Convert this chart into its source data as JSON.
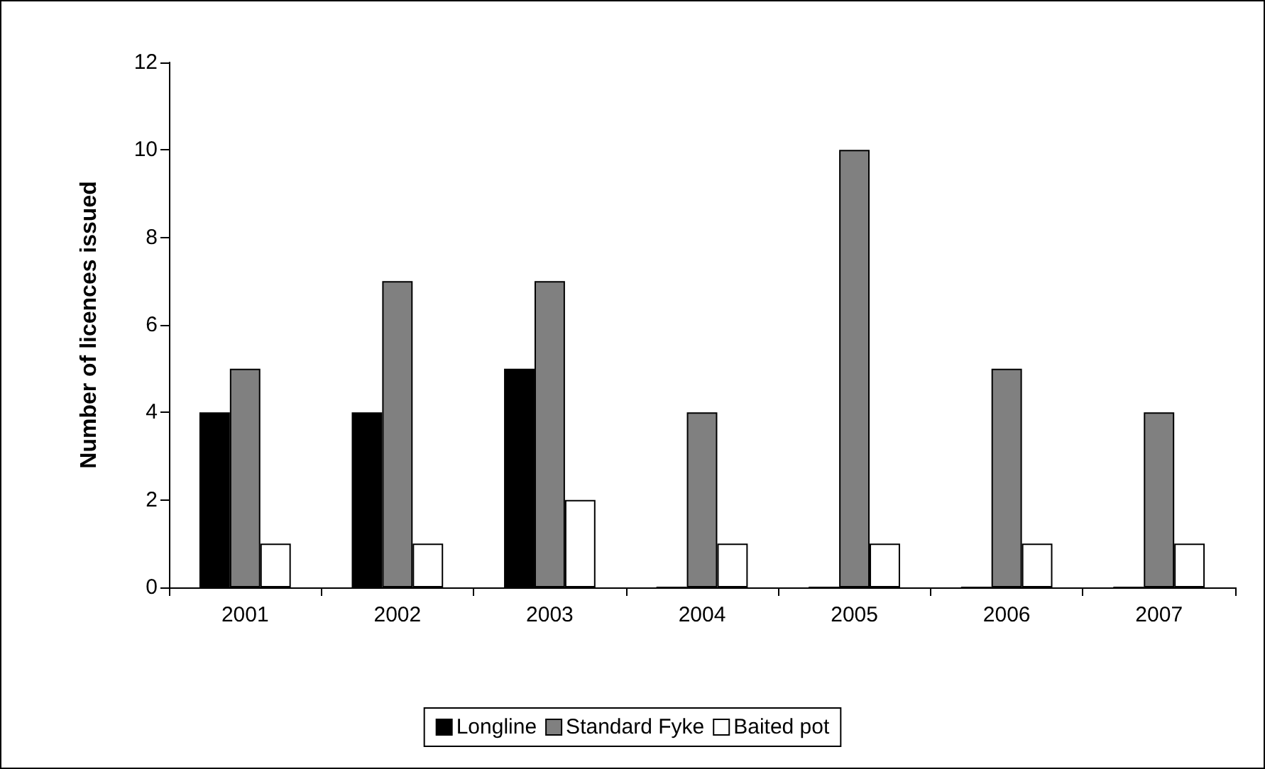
{
  "chart_data": {
    "type": "bar",
    "ylabel": "Number of licences issued",
    "categories": [
      "2001",
      "2002",
      "2003",
      "2004",
      "2005",
      "2006",
      "2007"
    ],
    "series": [
      {
        "name": "Longline",
        "color": "#000000",
        "values": [
          4,
          4,
          5,
          0,
          0,
          0,
          0
        ]
      },
      {
        "name": "Standard Fyke",
        "color": "#808080",
        "values": [
          5,
          7,
          7,
          4,
          10,
          5,
          4
        ]
      },
      {
        "name": "Baited pot",
        "color": "#ffffff",
        "values": [
          1,
          1,
          2,
          1,
          1,
          1,
          1
        ]
      }
    ],
    "ylim": [
      0,
      12
    ],
    "yticks": [
      0,
      2,
      4,
      6,
      8,
      10,
      12
    ],
    "grid": false,
    "legend": "bottom"
  }
}
